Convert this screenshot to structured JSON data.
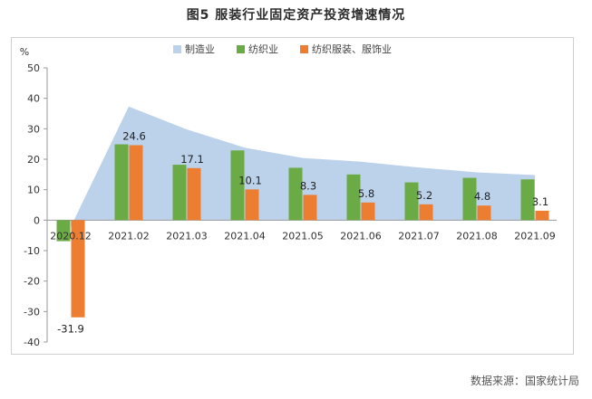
{
  "figure_title": "图5   服装行业固定资产投资增速情况",
  "source_note": "数据来源：国家统计局",
  "chart_data": {
    "type": "bar",
    "title": "图5   服装行业固定资产投资增速情况",
    "ylabel": "%",
    "ylim": [
      -40,
      50
    ],
    "yticks": [
      -40,
      -30,
      -20,
      -10,
      0,
      10,
      20,
      30,
      40,
      50
    ],
    "grid": false,
    "legend_position": "top-center",
    "categories": [
      "2020.12",
      "2021.02",
      "2021.03",
      "2021.04",
      "2021.05",
      "2021.06",
      "2021.07",
      "2021.08",
      "2021.09"
    ],
    "series": [
      {
        "name": "制造业",
        "render": "area",
        "color": "#bcd2ea",
        "values": [
          -2.2,
          37.3,
          29.8,
          23.8,
          20.4,
          19.2,
          17.3,
          15.7,
          14.8
        ]
      },
      {
        "name": "纺织业",
        "render": "bar",
        "color": "#6aab46",
        "values": [
          -6.9,
          24.9,
          18.2,
          22.9,
          17.2,
          15.0,
          12.4,
          13.9,
          13.4
        ]
      },
      {
        "name": "纺织服装、服饰业",
        "render": "bar",
        "color": "#ed7d31",
        "values": [
          -31.9,
          24.6,
          17.1,
          10.1,
          8.3,
          5.8,
          5.2,
          4.8,
          3.1
        ],
        "data_labels": [
          "-31.9",
          "24.6",
          "17.1",
          "10.1",
          "8.3",
          "5.8",
          "5.2",
          "4.8",
          "3.1"
        ]
      }
    ]
  }
}
